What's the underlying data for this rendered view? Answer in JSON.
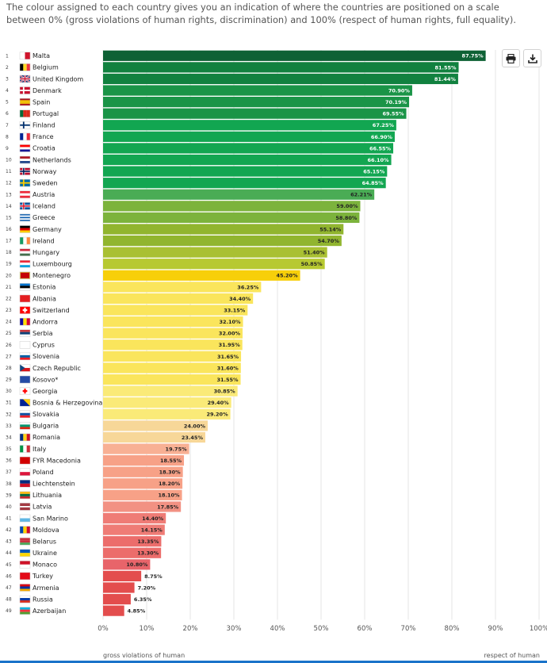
{
  "intro_text": "The colour assigned to each country gives you an indication of where the countries are positioned on a scale between 0% (gross violations of human rights, discrimination) and 100% (respect of human rights, full equality).",
  "toolbar": {
    "print_icon": "printer-icon",
    "download_icon": "download-icon"
  },
  "chart_data": {
    "type": "bar",
    "orientation": "horizontal",
    "xlim": [
      0,
      100
    ],
    "x_ticks": [
      "0%",
      "10%",
      "20%",
      "30%",
      "40%",
      "50%",
      "60%",
      "70%",
      "80%",
      "90%",
      "100%"
    ],
    "x_caption_left": "gross violations of human",
    "x_caption_right": "respect of human",
    "grid": true,
    "countries": [
      {
        "rank": "1",
        "name": "Malta",
        "value": 87.75,
        "label": "87.75%",
        "color": "#0e6135"
      },
      {
        "rank": "2",
        "name": "Belgium",
        "value": 81.55,
        "label": "81.55%",
        "color": "#11813f"
      },
      {
        "rank": "3",
        "name": "United Kingdom",
        "value": 81.44,
        "label": "81.44%",
        "color": "#11813f"
      },
      {
        "rank": "4",
        "name": "Denmark",
        "value": 70.9,
        "label": "70.90%",
        "color": "#1a9447"
      },
      {
        "rank": "5",
        "name": "Spain",
        "value": 70.19,
        "label": "70.19%",
        "color": "#1a9447"
      },
      {
        "rank": "6",
        "name": "Portugal",
        "value": 69.55,
        "label": "69.55%",
        "color": "#1a9447"
      },
      {
        "rank": "7",
        "name": "Finland",
        "value": 67.25,
        "label": "67.25%",
        "color": "#12a651"
      },
      {
        "rank": "8",
        "name": "France",
        "value": 66.9,
        "label": "66.90%",
        "color": "#12a651"
      },
      {
        "rank": "9",
        "name": "Croatia",
        "value": 66.55,
        "label": "66.55%",
        "color": "#12a651"
      },
      {
        "rank": "10",
        "name": "Netherlands",
        "value": 66.1,
        "label": "66.10%",
        "color": "#12a651"
      },
      {
        "rank": "11",
        "name": "Norway",
        "value": 65.15,
        "label": "65.15%",
        "color": "#12a651"
      },
      {
        "rank": "12",
        "name": "Sweden",
        "value": 64.85,
        "label": "64.85%",
        "color": "#12a651"
      },
      {
        "rank": "13",
        "name": "Austria",
        "value": 62.21,
        "label": "62.21%",
        "color": "#4aac55"
      },
      {
        "rank": "14",
        "name": "Iceland",
        "value": 59.0,
        "label": "59.00%",
        "color": "#7cb33c"
      },
      {
        "rank": "15",
        "name": "Greece",
        "value": 58.8,
        "label": "58.80%",
        "color": "#7cb33c"
      },
      {
        "rank": "16",
        "name": "Germany",
        "value": 55.14,
        "label": "55.14%",
        "color": "#91b52f"
      },
      {
        "rank": "17",
        "name": "Ireland",
        "value": 54.7,
        "label": "54.70%",
        "color": "#91b52f"
      },
      {
        "rank": "18",
        "name": "Hungary",
        "value": 51.4,
        "label": "51.40%",
        "color": "#a9c033"
      },
      {
        "rank": "19",
        "name": "Luxembourg",
        "value": 50.85,
        "label": "50.85%",
        "color": "#b7c931"
      },
      {
        "rank": "20",
        "name": "Montenegro",
        "value": 45.2,
        "label": "45.20%",
        "color": "#f7cf0a"
      },
      {
        "rank": "21",
        "name": "Estonia",
        "value": 36.25,
        "label": "36.25%",
        "color": "#fae55c"
      },
      {
        "rank": "22",
        "name": "Albania",
        "value": 34.4,
        "label": "34.40%",
        "color": "#fae55c"
      },
      {
        "rank": "23",
        "name": "Switzerland",
        "value": 33.15,
        "label": "33.15%",
        "color": "#fae55c"
      },
      {
        "rank": "24",
        "name": "Andorra",
        "value": 32.1,
        "label": "32.10%",
        "color": "#fae55c"
      },
      {
        "rank": "25",
        "name": "Serbia",
        "value": 32.0,
        "label": "32.00%",
        "color": "#fae55c"
      },
      {
        "rank": "26",
        "name": "Cyprus",
        "value": 31.95,
        "label": "31.95%",
        "color": "#fae55c"
      },
      {
        "rank": "27",
        "name": "Slovenia",
        "value": 31.65,
        "label": "31.65%",
        "color": "#fae55c"
      },
      {
        "rank": "28",
        "name": "Czech Republic",
        "value": 31.6,
        "label": "31.60%",
        "color": "#fae55c"
      },
      {
        "rank": "29",
        "name": "Kosovo*",
        "value": 31.55,
        "label": "31.55%",
        "color": "#fae55c"
      },
      {
        "rank": "30",
        "name": "Georgia",
        "value": 30.85,
        "label": "30.85%",
        "color": "#faea78"
      },
      {
        "rank": "31",
        "name": "Bosnia & Herzegovina",
        "value": 29.4,
        "label": "29.40%",
        "color": "#faea78"
      },
      {
        "rank": "32",
        "name": "Slovakia",
        "value": 29.2,
        "label": "29.20%",
        "color": "#faea78"
      },
      {
        "rank": "33",
        "name": "Bulgaria",
        "value": 24.0,
        "label": "24.00%",
        "color": "#f7d798"
      },
      {
        "rank": "34",
        "name": "Romania",
        "value": 23.45,
        "label": "23.45%",
        "color": "#f7d798"
      },
      {
        "rank": "35",
        "name": "Italy",
        "value": 19.75,
        "label": "19.75%",
        "color": "#f8b094"
      },
      {
        "rank": "36",
        "name": "FYR Macedonia",
        "value": 18.55,
        "label": "18.55%",
        "color": "#f7a187"
      },
      {
        "rank": "37",
        "name": "Poland",
        "value": 18.3,
        "label": "18.30%",
        "color": "#f7a187"
      },
      {
        "rank": "38",
        "name": "Liechtenstein",
        "value": 18.2,
        "label": "18.20%",
        "color": "#f7a187"
      },
      {
        "rank": "39",
        "name": "Lithuania",
        "value": 18.1,
        "label": "18.10%",
        "color": "#f7a187"
      },
      {
        "rank": "40",
        "name": "Latvia",
        "value": 17.85,
        "label": "17.85%",
        "color": "#f29183"
      },
      {
        "rank": "41",
        "name": "San Marino",
        "value": 14.4,
        "label": "14.40%",
        "color": "#ef7c76"
      },
      {
        "rank": "42",
        "name": "Moldova",
        "value": 14.15,
        "label": "14.15%",
        "color": "#ef7c76"
      },
      {
        "rank": "43",
        "name": "Belarus",
        "value": 13.35,
        "label": "13.35%",
        "color": "#ec6d6b"
      },
      {
        "rank": "44",
        "name": "Ukraine",
        "value": 13.3,
        "label": "13.30%",
        "color": "#ec6d6b"
      },
      {
        "rank": "45",
        "name": "Monaco",
        "value": 10.8,
        "label": "10.80%",
        "color": "#e8646a"
      },
      {
        "rank": "46",
        "name": "Turkey",
        "value": 8.75,
        "label": "8.75%",
        "color": "#e34d4d"
      },
      {
        "rank": "47",
        "name": "Armenia",
        "value": 7.2,
        "label": "7.20%",
        "color": "#e34d4d"
      },
      {
        "rank": "48",
        "name": "Russia",
        "value": 6.35,
        "label": "6.35%",
        "color": "#e34d4d"
      },
      {
        "rank": "49",
        "name": "Azerbaijan",
        "value": 4.85,
        "label": "4.85%",
        "color": "#e34d4d"
      }
    ]
  },
  "flags": {
    "Malta": {
      "type": "vbands",
      "colors": [
        "#ffffff",
        "#cf142b"
      ]
    },
    "Belgium": {
      "type": "vbands",
      "colors": [
        "#000000",
        "#fdda24",
        "#ef3340"
      ]
    },
    "United Kingdom": {
      "type": "uk",
      "colors": [
        "#012169",
        "#ffffff",
        "#c8102e"
      ]
    },
    "Denmark": {
      "type": "nordic",
      "colors": [
        "#c8102e",
        "#ffffff"
      ]
    },
    "Spain": {
      "type": "hbands",
      "colors": [
        "#aa151b",
        "#f1bf00",
        "#f1bf00",
        "#aa151b"
      ]
    },
    "Portugal": {
      "type": "vbands",
      "colors": [
        "#046a38",
        "#da291c",
        "#da291c"
      ]
    },
    "Finland": {
      "type": "nordic",
      "colors": [
        "#ffffff",
        "#002f6c"
      ]
    },
    "France": {
      "type": "vbands",
      "colors": [
        "#002395",
        "#ffffff",
        "#ed2939"
      ]
    },
    "Croatia": {
      "type": "hbands",
      "colors": [
        "#ff0000",
        "#ffffff",
        "#171796"
      ]
    },
    "Netherlands": {
      "type": "hbands",
      "colors": [
        "#ae1c28",
        "#ffffff",
        "#21468b"
      ]
    },
    "Norway": {
      "type": "nordic2",
      "colors": [
        "#ba0c2f",
        "#ffffff",
        "#00205b"
      ]
    },
    "Sweden": {
      "type": "nordic",
      "colors": [
        "#006aa7",
        "#fecc00"
      ]
    },
    "Austria": {
      "type": "hbands",
      "colors": [
        "#ed2939",
        "#ffffff",
        "#ed2939"
      ]
    },
    "Iceland": {
      "type": "nordic2",
      "colors": [
        "#02529c",
        "#ffffff",
        "#dc1e35"
      ]
    },
    "Greece": {
      "type": "hbands",
      "colors": [
        "#0d5eaf",
        "#ffffff",
        "#0d5eaf",
        "#ffffff",
        "#0d5eaf"
      ]
    },
    "Germany": {
      "type": "hbands",
      "colors": [
        "#000000",
        "#dd0000",
        "#ffce00"
      ]
    },
    "Ireland": {
      "type": "vbands",
      "colors": [
        "#169b62",
        "#ffffff",
        "#ff883e"
      ]
    },
    "Hungary": {
      "type": "hbands",
      "colors": [
        "#cd2a3e",
        "#ffffff",
        "#436f4d"
      ]
    },
    "Luxembourg": {
      "type": "hbands",
      "colors": [
        "#ed2939",
        "#ffffff",
        "#00a1de"
      ]
    },
    "Montenegro": {
      "type": "framed",
      "colors": [
        "#d3ae3b",
        "#c40308"
      ]
    },
    "Estonia": {
      "type": "hbands",
      "colors": [
        "#0072ce",
        "#000000",
        "#ffffff"
      ]
    },
    "Albania": {
      "type": "plain",
      "colors": [
        "#e41e20"
      ]
    },
    "Switzerland": {
      "type": "cross",
      "colors": [
        "#ff0000",
        "#ffffff"
      ]
    },
    "Andorra": {
      "type": "vbands",
      "colors": [
        "#10069f",
        "#fedd00",
        "#d50032"
      ]
    },
    "Serbia": {
      "type": "hbands",
      "colors": [
        "#c6363c",
        "#0c4076",
        "#ffffff"
      ]
    },
    "Cyprus": {
      "type": "plain",
      "colors": [
        "#ffffff"
      ]
    },
    "Slovenia": {
      "type": "hbands",
      "colors": [
        "#ffffff",
        "#005da4",
        "#ed1c24"
      ]
    },
    "Czech Republic": {
      "type": "czech",
      "colors": [
        "#ffffff",
        "#d7141a",
        "#11457e"
      ]
    },
    "Kosovo*": {
      "type": "plain",
      "colors": [
        "#244aa5"
      ]
    },
    "Georgia": {
      "type": "cross",
      "colors": [
        "#ffffff",
        "#ff0000"
      ]
    },
    "Bosnia & Herzegovina": {
      "type": "diag",
      "colors": [
        "#002395",
        "#fecb00"
      ]
    },
    "Slovakia": {
      "type": "hbands",
      "colors": [
        "#ffffff",
        "#0b4ea2",
        "#ee1c25"
      ]
    },
    "Bulgaria": {
      "type": "hbands",
      "colors": [
        "#ffffff",
        "#00966e",
        "#d62612"
      ]
    },
    "Romania": {
      "type": "vbands",
      "colors": [
        "#002b7f",
        "#fcd116",
        "#ce1126"
      ]
    },
    "Italy": {
      "type": "vbands",
      "colors": [
        "#009246",
        "#ffffff",
        "#ce2b37"
      ]
    },
    "FYR Macedonia": {
      "type": "plain",
      "colors": [
        "#d20000"
      ]
    },
    "Poland": {
      "type": "hbands",
      "colors": [
        "#ffffff",
        "#dc143c"
      ]
    },
    "Liechtenstein": {
      "type": "hbands",
      "colors": [
        "#002b7f",
        "#ce1126"
      ]
    },
    "Lithuania": {
      "type": "hbands",
      "colors": [
        "#fdb913",
        "#006a44",
        "#c1272d"
      ]
    },
    "Latvia": {
      "type": "hbands",
      "colors": [
        "#9e3039",
        "#9e3039",
        "#ffffff",
        "#9e3039",
        "#9e3039"
      ]
    },
    "San Marino": {
      "type": "hbands",
      "colors": [
        "#ffffff",
        "#5eb6e4"
      ]
    },
    "Moldova": {
      "type": "vbands",
      "colors": [
        "#0046ae",
        "#ffd200",
        "#cc092f"
      ]
    },
    "Belarus": {
      "type": "hbands",
      "colors": [
        "#c8313e",
        "#c8313e",
        "#4aa657"
      ]
    },
    "Ukraine": {
      "type": "hbands",
      "colors": [
        "#0057b7",
        "#ffd700"
      ]
    },
    "Monaco": {
      "type": "hbands",
      "colors": [
        "#ce1126",
        "#ffffff"
      ]
    },
    "Turkey": {
      "type": "plain",
      "colors": [
        "#e30a17"
      ]
    },
    "Armenia": {
      "type": "hbands",
      "colors": [
        "#d90012",
        "#0033a0",
        "#f2a800"
      ]
    },
    "Russia": {
      "type": "hbands",
      "colors": [
        "#ffffff",
        "#0039a6",
        "#d52b1e"
      ]
    },
    "Azerbaijan": {
      "type": "hbands",
      "colors": [
        "#00b5e2",
        "#ef3340",
        "#509e2f"
      ]
    }
  }
}
